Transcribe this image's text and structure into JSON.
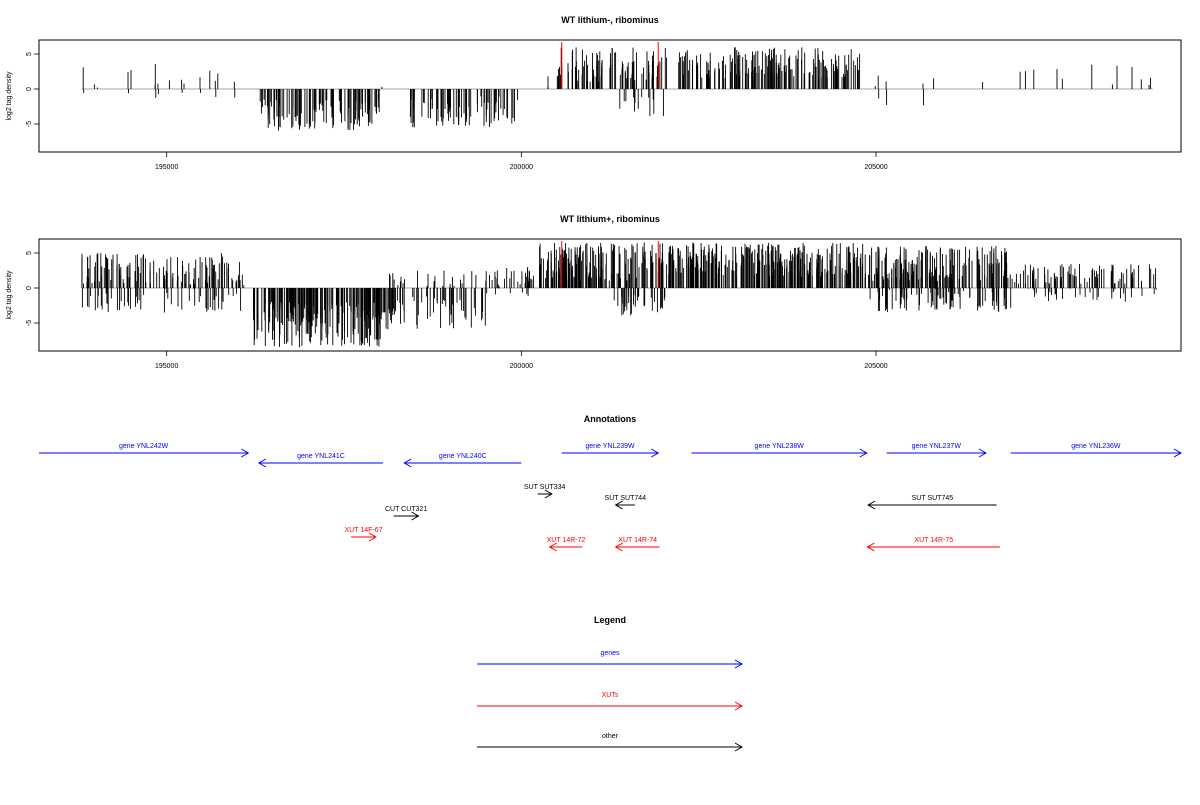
{
  "colors": {
    "genes": "#0000ff",
    "xuts": "#ff0000",
    "other": "#000000",
    "marker": "#ff0000"
  },
  "chart_data": [
    {
      "type": "bar",
      "title": "WT lithium-, ribominus",
      "ylabel": "log2 tag density",
      "xlim": [
        193200,
        209300
      ],
      "ylim": [
        -9,
        7
      ],
      "x_ticks": [
        195000,
        200000,
        205000
      ],
      "y_ticks": [
        -5,
        0,
        5
      ],
      "grid": false,
      "marker_positions": [
        200570,
        201930
      ],
      "segments": [
        {
          "x_start": 193800,
          "x_end": 196050,
          "density": 0.1,
          "range": [
            0,
            3.6
          ],
          "neg_range": [
            0,
            2.5
          ]
        },
        {
          "x_start": 196300,
          "x_end": 198000,
          "density": 0.95,
          "range": [
            -6,
            -1.5
          ]
        },
        {
          "x_start": 198000,
          "x_end": 198300,
          "density": 0.03,
          "range": [
            0,
            2
          ]
        },
        {
          "x_start": 198400,
          "x_end": 199950,
          "density": 0.75,
          "range": [
            -5.5,
            -1
          ]
        },
        {
          "x_start": 200100,
          "x_end": 200450,
          "density": 0.08,
          "range": [
            0,
            2
          ]
        },
        {
          "x_start": 200450,
          "x_end": 202050,
          "density": 0.85,
          "range": [
            1,
            6
          ]
        },
        {
          "x_start": 201300,
          "x_end": 202050,
          "density": 0.25,
          "range": [
            -4,
            -1
          ]
        },
        {
          "x_start": 202200,
          "x_end": 204800,
          "density": 0.95,
          "range": [
            1.5,
            6
          ]
        },
        {
          "x_start": 204800,
          "x_end": 206300,
          "density": 0.05,
          "range": [
            0,
            2
          ],
          "neg_range": [
            0,
            3
          ]
        },
        {
          "x_start": 206300,
          "x_end": 208900,
          "density": 0.07,
          "range": [
            0.5,
            3.5
          ]
        }
      ]
    },
    {
      "type": "bar",
      "title": "WT lithium+, ribominus",
      "ylabel": "log2 tag density",
      "xlim": [
        193200,
        209300
      ],
      "ylim": [
        -9,
        7
      ],
      "x_ticks": [
        195000,
        200000,
        205000
      ],
      "y_ticks": [
        -5,
        0,
        5
      ],
      "grid": false,
      "marker_positions": [
        200570,
        201930
      ],
      "segments": [
        {
          "x_start": 193800,
          "x_end": 196050,
          "density": 0.85,
          "range": [
            0.5,
            5
          ],
          "neg_range": [
            0,
            3.5
          ]
        },
        {
          "x_start": 196050,
          "x_end": 196150,
          "density": 0.3,
          "range": [
            0,
            2
          ]
        },
        {
          "x_start": 196200,
          "x_end": 198100,
          "density": 1.5,
          "range": [
            -8.5,
            -2
          ]
        },
        {
          "x_start": 198100,
          "x_end": 199500,
          "density": 0.55,
          "range": [
            -6,
            -1
          ],
          "pos_range": [
            0,
            2.5
          ]
        },
        {
          "x_start": 199500,
          "x_end": 200100,
          "density": 0.6,
          "range": [
            0,
            3
          ],
          "neg_range": [
            0,
            1.5
          ]
        },
        {
          "x_start": 200100,
          "x_end": 202100,
          "density": 1.3,
          "range": [
            1,
            6.5
          ]
        },
        {
          "x_start": 201300,
          "x_end": 202050,
          "density": 0.6,
          "range": [
            -4,
            -1
          ]
        },
        {
          "x_start": 202100,
          "x_end": 204900,
          "density": 1.4,
          "range": [
            1.5,
            6.5
          ]
        },
        {
          "x_start": 204900,
          "x_end": 206900,
          "density": 1.2,
          "range": [
            1,
            6
          ],
          "neg_range": [
            0,
            3.5
          ]
        },
        {
          "x_start": 206900,
          "x_end": 208950,
          "density": 0.6,
          "range": [
            0.5,
            3.5
          ],
          "neg_range": [
            0,
            2
          ]
        }
      ]
    },
    {
      "type": "diagram",
      "title": "Annotations",
      "features": [
        {
          "label": "gene YNL242W",
          "category": "genes",
          "strand": "+",
          "start": 193200,
          "end": 196150,
          "row": 0
        },
        {
          "label": "gene YNL241C",
          "category": "genes",
          "strand": "-",
          "start": 196300,
          "end": 198050,
          "row": 1
        },
        {
          "label": "gene YNL240C",
          "category": "genes",
          "strand": "-",
          "start": 198350,
          "end": 200000,
          "row": 1
        },
        {
          "label": "gene YNL239W",
          "category": "genes",
          "strand": "+",
          "start": 200570,
          "end": 201930,
          "row": 0
        },
        {
          "label": "gene YNL238W",
          "category": "genes",
          "strand": "+",
          "start": 202400,
          "end": 204870,
          "row": 0
        },
        {
          "label": "gene YNL237W",
          "category": "genes",
          "strand": "+",
          "start": 205150,
          "end": 206550,
          "row": 0
        },
        {
          "label": "gene YNL236W",
          "category": "genes",
          "strand": "+",
          "start": 206900,
          "end": 209300,
          "row": 0
        },
        {
          "label": "SUT SUT334",
          "category": "other",
          "strand": "+",
          "start": 200230,
          "end": 200430,
          "row": 2
        },
        {
          "label": "SUT SUT744",
          "category": "other",
          "strand": "-",
          "start": 201330,
          "end": 201600,
          "row": 3
        },
        {
          "label": "SUT SUT745",
          "category": "other",
          "strand": "-",
          "start": 204890,
          "end": 206700,
          "row": 3
        },
        {
          "label": "CUT CUT321",
          "category": "other",
          "strand": "+",
          "start": 198200,
          "end": 198550,
          "row": 4
        },
        {
          "label": "XUT 14F-67",
          "category": "xuts",
          "strand": "+",
          "start": 197600,
          "end": 197950,
          "row": 5
        },
        {
          "label": "XUT 14R-72",
          "category": "xuts",
          "strand": "-",
          "start": 200400,
          "end": 200860,
          "row": 6
        },
        {
          "label": "XUT 14R-74",
          "category": "xuts",
          "strand": "-",
          "start": 201330,
          "end": 201950,
          "row": 6
        },
        {
          "label": "XUT 14R-75",
          "category": "xuts",
          "strand": "-",
          "start": 204880,
          "end": 206750,
          "row": 6
        }
      ]
    },
    {
      "type": "legend",
      "title": "Legend",
      "entries": [
        {
          "label": "genes",
          "category": "genes"
        },
        {
          "label": "XUTs",
          "category": "xuts"
        },
        {
          "label": "other",
          "category": "other"
        }
      ]
    }
  ]
}
